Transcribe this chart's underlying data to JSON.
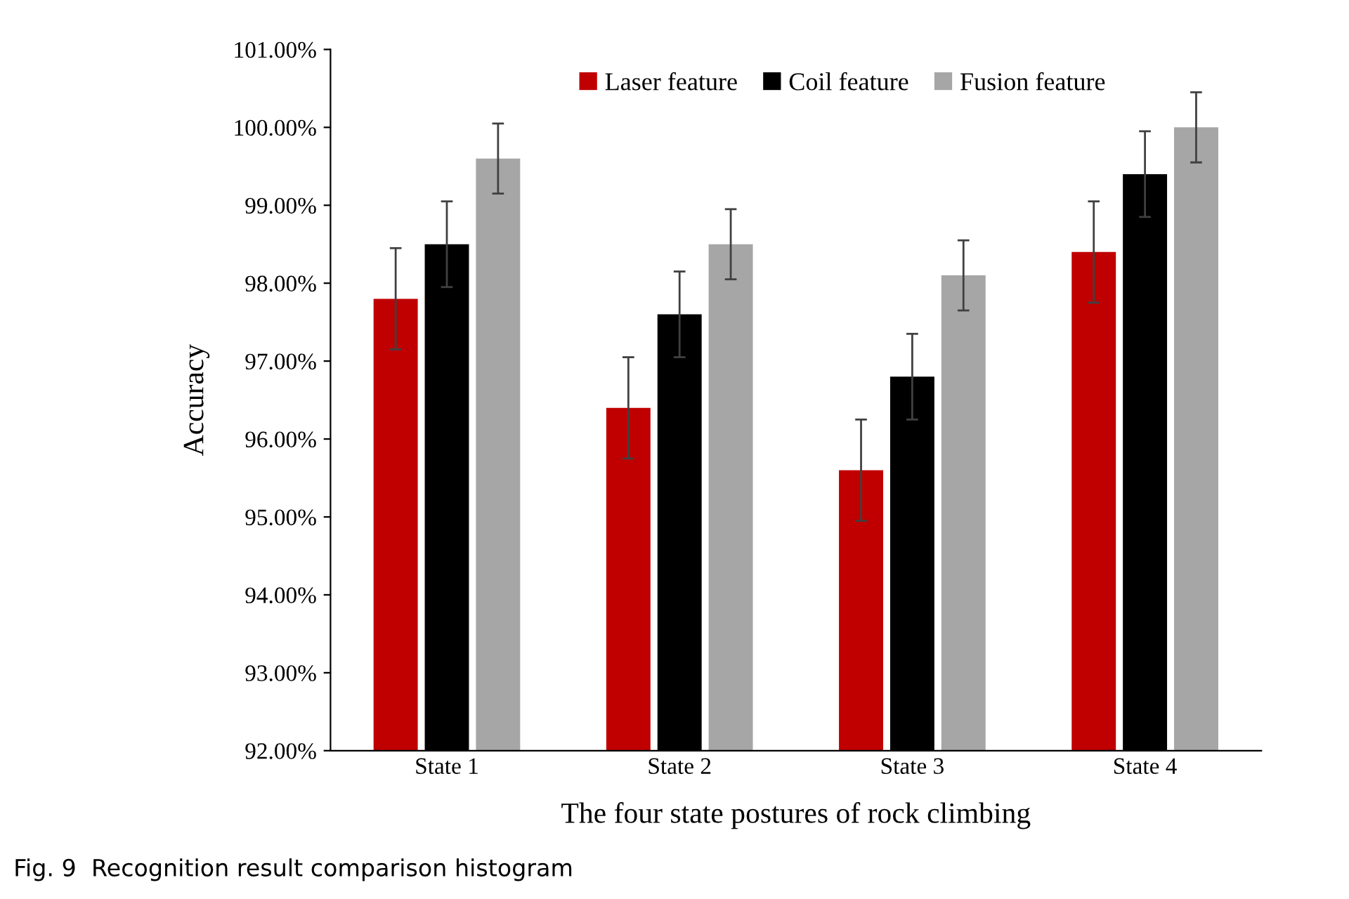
{
  "chart_data": {
    "type": "bar",
    "xlabel": "The four state postures of rock climbing",
    "ylabel": "Accuracy",
    "categories": [
      "State 1",
      "State 2",
      "State 3",
      "State 4"
    ],
    "series": [
      {
        "name": "Laser feature",
        "color": "#c00000",
        "values": [
          97.8,
          96.4,
          95.6,
          98.4
        ],
        "errors": [
          0.65,
          0.65,
          0.65,
          0.65
        ]
      },
      {
        "name": "Coil feature",
        "color": "#000000",
        "values": [
          98.5,
          97.6,
          96.8,
          99.4
        ],
        "errors": [
          0.55,
          0.55,
          0.55,
          0.55
        ]
      },
      {
        "name": "Fusion feature",
        "color": "#a6a6a6",
        "values": [
          99.6,
          98.5,
          98.1,
          100.0
        ],
        "errors": [
          0.45,
          0.45,
          0.45,
          0.45
        ]
      }
    ],
    "ylim": [
      92,
      101
    ],
    "yticks": [
      {
        "value": 92,
        "label": "92.00%"
      },
      {
        "value": 93,
        "label": "93.00%"
      },
      {
        "value": 94,
        "label": "94.00%"
      },
      {
        "value": 95,
        "label": "95.00%"
      },
      {
        "value": 96,
        "label": "96.00%"
      },
      {
        "value": 97,
        "label": "97.00%"
      },
      {
        "value": 98,
        "label": "98.00%"
      },
      {
        "value": 99,
        "label": "99.00%"
      },
      {
        "value": 100,
        "label": "100.00%"
      },
      {
        "value": 101,
        "label": "101.00%"
      }
    ],
    "grid": false,
    "legend": "top",
    "annotations": [
      "Fig. 9  Recognition result comparison histogram"
    ]
  }
}
